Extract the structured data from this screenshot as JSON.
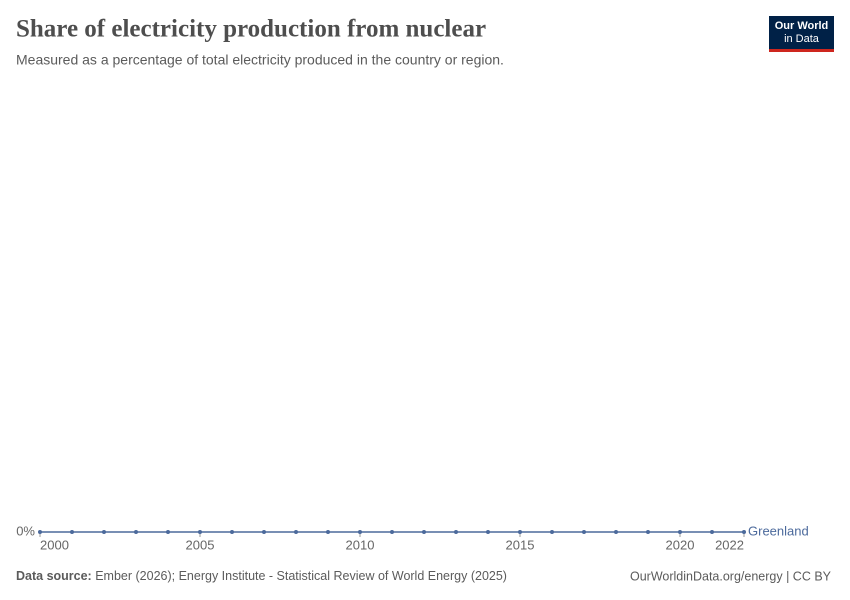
{
  "header": {
    "title": "Share of electricity production from nuclear",
    "subtitle": "Measured as a percentage of total electricity produced in the country or region.",
    "logo": [
      "Our World",
      "in Data"
    ]
  },
  "chart_data": {
    "type": "line",
    "x": [
      2000,
      2001,
      2002,
      2003,
      2004,
      2005,
      2006,
      2007,
      2008,
      2009,
      2010,
      2011,
      2012,
      2013,
      2014,
      2015,
      2016,
      2017,
      2018,
      2019,
      2020,
      2021,
      2022
    ],
    "series": [
      {
        "name": "Greenland",
        "color": "#4c6a9c",
        "values": [
          0,
          0,
          0,
          0,
          0,
          0,
          0,
          0,
          0,
          0,
          0,
          0,
          0,
          0,
          0,
          0,
          0,
          0,
          0,
          0,
          0,
          0,
          0
        ]
      }
    ],
    "xlim": [
      2000,
      2022
    ],
    "xticks": [
      2000,
      2005,
      2010,
      2015,
      2020,
      2022
    ],
    "ylim": [
      0,
      1
    ],
    "yticks": [
      {
        "value": 0,
        "label": "0%"
      }
    ],
    "grid": true
  },
  "footer": {
    "source_label": "Data source:",
    "source": "Ember (2026); Energy Institute - Statistical Review of World Energy (2025)",
    "credit": "OurWorldinData.org/energy | CC BY"
  }
}
